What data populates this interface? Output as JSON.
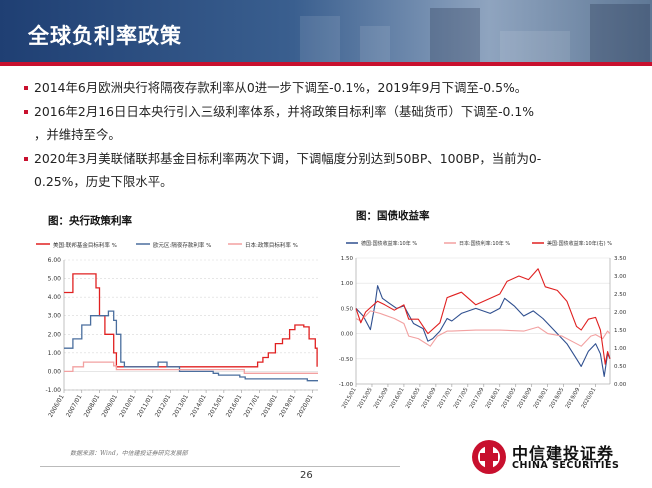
{
  "header": {
    "title": "全球负利率政策"
  },
  "bullets": [
    {
      "text": "2014年6月欧洲央行将隔夜存款利率从0进一步下调至-0.1%，2019年9月下调至-0.5%。"
    },
    {
      "text": "2016年2月16日日本央行引入三级利率体系，并将政策目标利率（基础货币）下调至-0.1%"
    },
    {
      "text": "，并维持至今。"
    },
    {
      "text": "2020年3月美联储联邦基金目标利率两次下调，下调幅度分别达到50BP、100BP，当前为0-"
    },
    {
      "text": "0.25%，历史下限水平。"
    }
  ],
  "charts": {
    "left": {
      "caption": "图：央行政策利率"
    },
    "right": {
      "caption": "图：国债收益率"
    }
  },
  "chart_data": [
    {
      "type": "line",
      "title": "图：央行政策利率",
      "legend": [
        "美国:联邦基金目标利率 %",
        "欧元区:隔夜存款利率 %",
        "日本:政策目标利率 %"
      ],
      "colors": [
        "#e02020",
        "#4a6e9e",
        "#f2a0a0"
      ],
      "x_ticks": [
        "2006/01",
        "2007/01",
        "2008/01",
        "2009/01",
        "2010/01",
        "2011/01",
        "2012/01",
        "2013/01",
        "2014/01",
        "2015/01",
        "2016/01",
        "2017/01",
        "2018/01",
        "2019/01",
        "2020/01"
      ],
      "ylim": [
        -1.0,
        6.0
      ],
      "y_ticks": [
        "6.00",
        "5.00",
        "4.00",
        "3.00",
        "2.00",
        "1.00",
        "0.00",
        "-1.00"
      ],
      "x_range": [
        2006.0,
        2020.3
      ],
      "series": [
        {
          "name": "美国:联邦基金目标利率 %",
          "points": [
            [
              2006.0,
              4.25
            ],
            [
              2006.5,
              5.25
            ],
            [
              2007.6,
              5.25
            ],
            [
              2007.8,
              4.5
            ],
            [
              2008.0,
              3.0
            ],
            [
              2008.3,
              2.0
            ],
            [
              2008.8,
              1.0
            ],
            [
              2008.95,
              0.25
            ],
            [
              2015.9,
              0.25
            ],
            [
              2016.9,
              0.5
            ],
            [
              2017.2,
              0.75
            ],
            [
              2017.5,
              1.0
            ],
            [
              2017.9,
              1.5
            ],
            [
              2018.3,
              1.75
            ],
            [
              2018.7,
              2.25
            ],
            [
              2019.0,
              2.5
            ],
            [
              2019.5,
              2.4
            ],
            [
              2019.8,
              1.75
            ],
            [
              2020.15,
              1.25
            ],
            [
              2020.25,
              0.25
            ]
          ]
        },
        {
          "name": "欧元区:隔夜存款利率 %",
          "points": [
            [
              2006.0,
              1.25
            ],
            [
              2006.5,
              1.75
            ],
            [
              2007.0,
              2.5
            ],
            [
              2007.5,
              3.0
            ],
            [
              2008.5,
              3.25
            ],
            [
              2008.8,
              2.75
            ],
            [
              2008.95,
              2.0
            ],
            [
              2009.2,
              0.5
            ],
            [
              2009.4,
              0.25
            ],
            [
              2011.3,
              0.5
            ],
            [
              2011.8,
              0.25
            ],
            [
              2012.5,
              0.0
            ],
            [
              2014.4,
              -0.1
            ],
            [
              2014.7,
              -0.2
            ],
            [
              2015.9,
              -0.3
            ],
            [
              2016.2,
              -0.4
            ],
            [
              2019.7,
              -0.5
            ],
            [
              2020.3,
              -0.5
            ]
          ]
        },
        {
          "name": "日本:政策目标利率 %",
          "points": [
            [
              2006.0,
              0.0
            ],
            [
              2006.5,
              0.25
            ],
            [
              2007.1,
              0.5
            ],
            [
              2008.8,
              0.3
            ],
            [
              2008.95,
              0.1
            ],
            [
              2016.1,
              0.1
            ],
            [
              2016.15,
              -0.1
            ],
            [
              2020.3,
              -0.1
            ]
          ]
        }
      ]
    },
    {
      "type": "line",
      "title": "图：国债收益率",
      "legend": [
        "德国:国债收益率:10年 %",
        "日本:国债利率:10年 %",
        "美国:国债收益率:10年(右) %"
      ],
      "colors": [
        "#2f4f8f",
        "#f2a0a0",
        "#e02020"
      ],
      "x_ticks": [
        "2015/01",
        "2015/05",
        "2015/09",
        "2016/01",
        "2016/05",
        "2016/09",
        "2017/01",
        "2017/05",
        "2017/09",
        "2018/01",
        "2018/05",
        "2018/09",
        "2019/01",
        "2019/05",
        "2019/09",
        "2020/01"
      ],
      "ylim_left": [
        -1.0,
        1.5
      ],
      "ylim_right": [
        0.0,
        3.5
      ],
      "y_ticks_left": [
        "1.50",
        "1.00",
        "0.50",
        "0.00",
        "-0.50",
        "-1.00"
      ],
      "y_ticks_right": [
        "3.50",
        "3.00",
        "2.50",
        "2.00",
        "1.50",
        "1.00",
        "0.50",
        "0.00"
      ],
      "x_range": [
        2015.0,
        2020.3
      ],
      "series": [
        {
          "name": "德国:国债收益率:10年 %",
          "axis": "left",
          "points": [
            [
              2015.0,
              0.5
            ],
            [
              2015.15,
              0.35
            ],
            [
              2015.3,
              0.08
            ],
            [
              2015.4,
              0.6
            ],
            [
              2015.45,
              0.95
            ],
            [
              2015.55,
              0.7
            ],
            [
              2015.7,
              0.6
            ],
            [
              2015.85,
              0.5
            ],
            [
              2016.0,
              0.55
            ],
            [
              2016.2,
              0.2
            ],
            [
              2016.4,
              0.1
            ],
            [
              2016.5,
              -0.15
            ],
            [
              2016.6,
              -0.1
            ],
            [
              2016.75,
              0.05
            ],
            [
              2016.9,
              0.3
            ],
            [
              2017.0,
              0.25
            ],
            [
              2017.2,
              0.4
            ],
            [
              2017.5,
              0.5
            ],
            [
              2017.8,
              0.4
            ],
            [
              2018.0,
              0.5
            ],
            [
              2018.1,
              0.7
            ],
            [
              2018.3,
              0.55
            ],
            [
              2018.5,
              0.35
            ],
            [
              2018.7,
              0.45
            ],
            [
              2018.9,
              0.3
            ],
            [
              2019.0,
              0.2
            ],
            [
              2019.2,
              0.0
            ],
            [
              2019.4,
              -0.2
            ],
            [
              2019.6,
              -0.5
            ],
            [
              2019.7,
              -0.65
            ],
            [
              2019.85,
              -0.35
            ],
            [
              2020.0,
              -0.2
            ],
            [
              2020.1,
              -0.4
            ],
            [
              2020.18,
              -0.85
            ],
            [
              2020.25,
              -0.4
            ],
            [
              2020.3,
              -0.5
            ]
          ]
        },
        {
          "name": "日本:国债利率:10年 %",
          "axis": "left",
          "points": [
            [
              2015.0,
              0.3
            ],
            [
              2015.1,
              0.25
            ],
            [
              2015.3,
              0.45
            ],
            [
              2015.5,
              0.4
            ],
            [
              2015.8,
              0.3
            ],
            [
              2016.0,
              0.2
            ],
            [
              2016.1,
              -0.05
            ],
            [
              2016.3,
              -0.1
            ],
            [
              2016.55,
              -0.25
            ],
            [
              2016.7,
              -0.05
            ],
            [
              2016.9,
              0.05
            ],
            [
              2017.0,
              0.05
            ],
            [
              2017.5,
              0.07
            ],
            [
              2018.0,
              0.07
            ],
            [
              2018.5,
              0.05
            ],
            [
              2018.8,
              0.13
            ],
            [
              2019.0,
              0.0
            ],
            [
              2019.3,
              -0.05
            ],
            [
              2019.6,
              -0.2
            ],
            [
              2019.7,
              -0.25
            ],
            [
              2019.9,
              -0.05
            ],
            [
              2020.0,
              -0.02
            ],
            [
              2020.15,
              -0.1
            ],
            [
              2020.25,
              0.05
            ],
            [
              2020.3,
              0.0
            ]
          ]
        },
        {
          "name": "美国:国债收益率:10年(右) %",
          "axis": "right",
          "points": [
            [
              2015.0,
              2.1
            ],
            [
              2015.1,
              1.7
            ],
            [
              2015.2,
              2.0
            ],
            [
              2015.45,
              2.3
            ],
            [
              2015.6,
              2.2
            ],
            [
              2015.8,
              2.05
            ],
            [
              2016.0,
              2.2
            ],
            [
              2016.1,
              1.8
            ],
            [
              2016.3,
              1.8
            ],
            [
              2016.5,
              1.4
            ],
            [
              2016.75,
              1.7
            ],
            [
              2016.9,
              2.4
            ],
            [
              2017.0,
              2.45
            ],
            [
              2017.2,
              2.55
            ],
            [
              2017.5,
              2.2
            ],
            [
              2017.75,
              2.35
            ],
            [
              2018.0,
              2.5
            ],
            [
              2018.15,
              2.85
            ],
            [
              2018.4,
              3.0
            ],
            [
              2018.6,
              2.9
            ],
            [
              2018.8,
              3.2
            ],
            [
              2018.95,
              2.7
            ],
            [
              2019.2,
              2.6
            ],
            [
              2019.4,
              2.3
            ],
            [
              2019.6,
              1.6
            ],
            [
              2019.7,
              1.5
            ],
            [
              2019.85,
              1.8
            ],
            [
              2020.0,
              1.85
            ],
            [
              2020.1,
              1.5
            ],
            [
              2020.2,
              0.55
            ],
            [
              2020.25,
              0.9
            ],
            [
              2020.3,
              0.7
            ]
          ]
        }
      ]
    }
  ],
  "footer": {
    "source": "数据来源：Wind，中信建投证券研究发展部",
    "page": "26",
    "logo_cn": "中信建投证券",
    "logo_en": "CHINA SECURITIES",
    "logo_color": "#c8102e"
  }
}
